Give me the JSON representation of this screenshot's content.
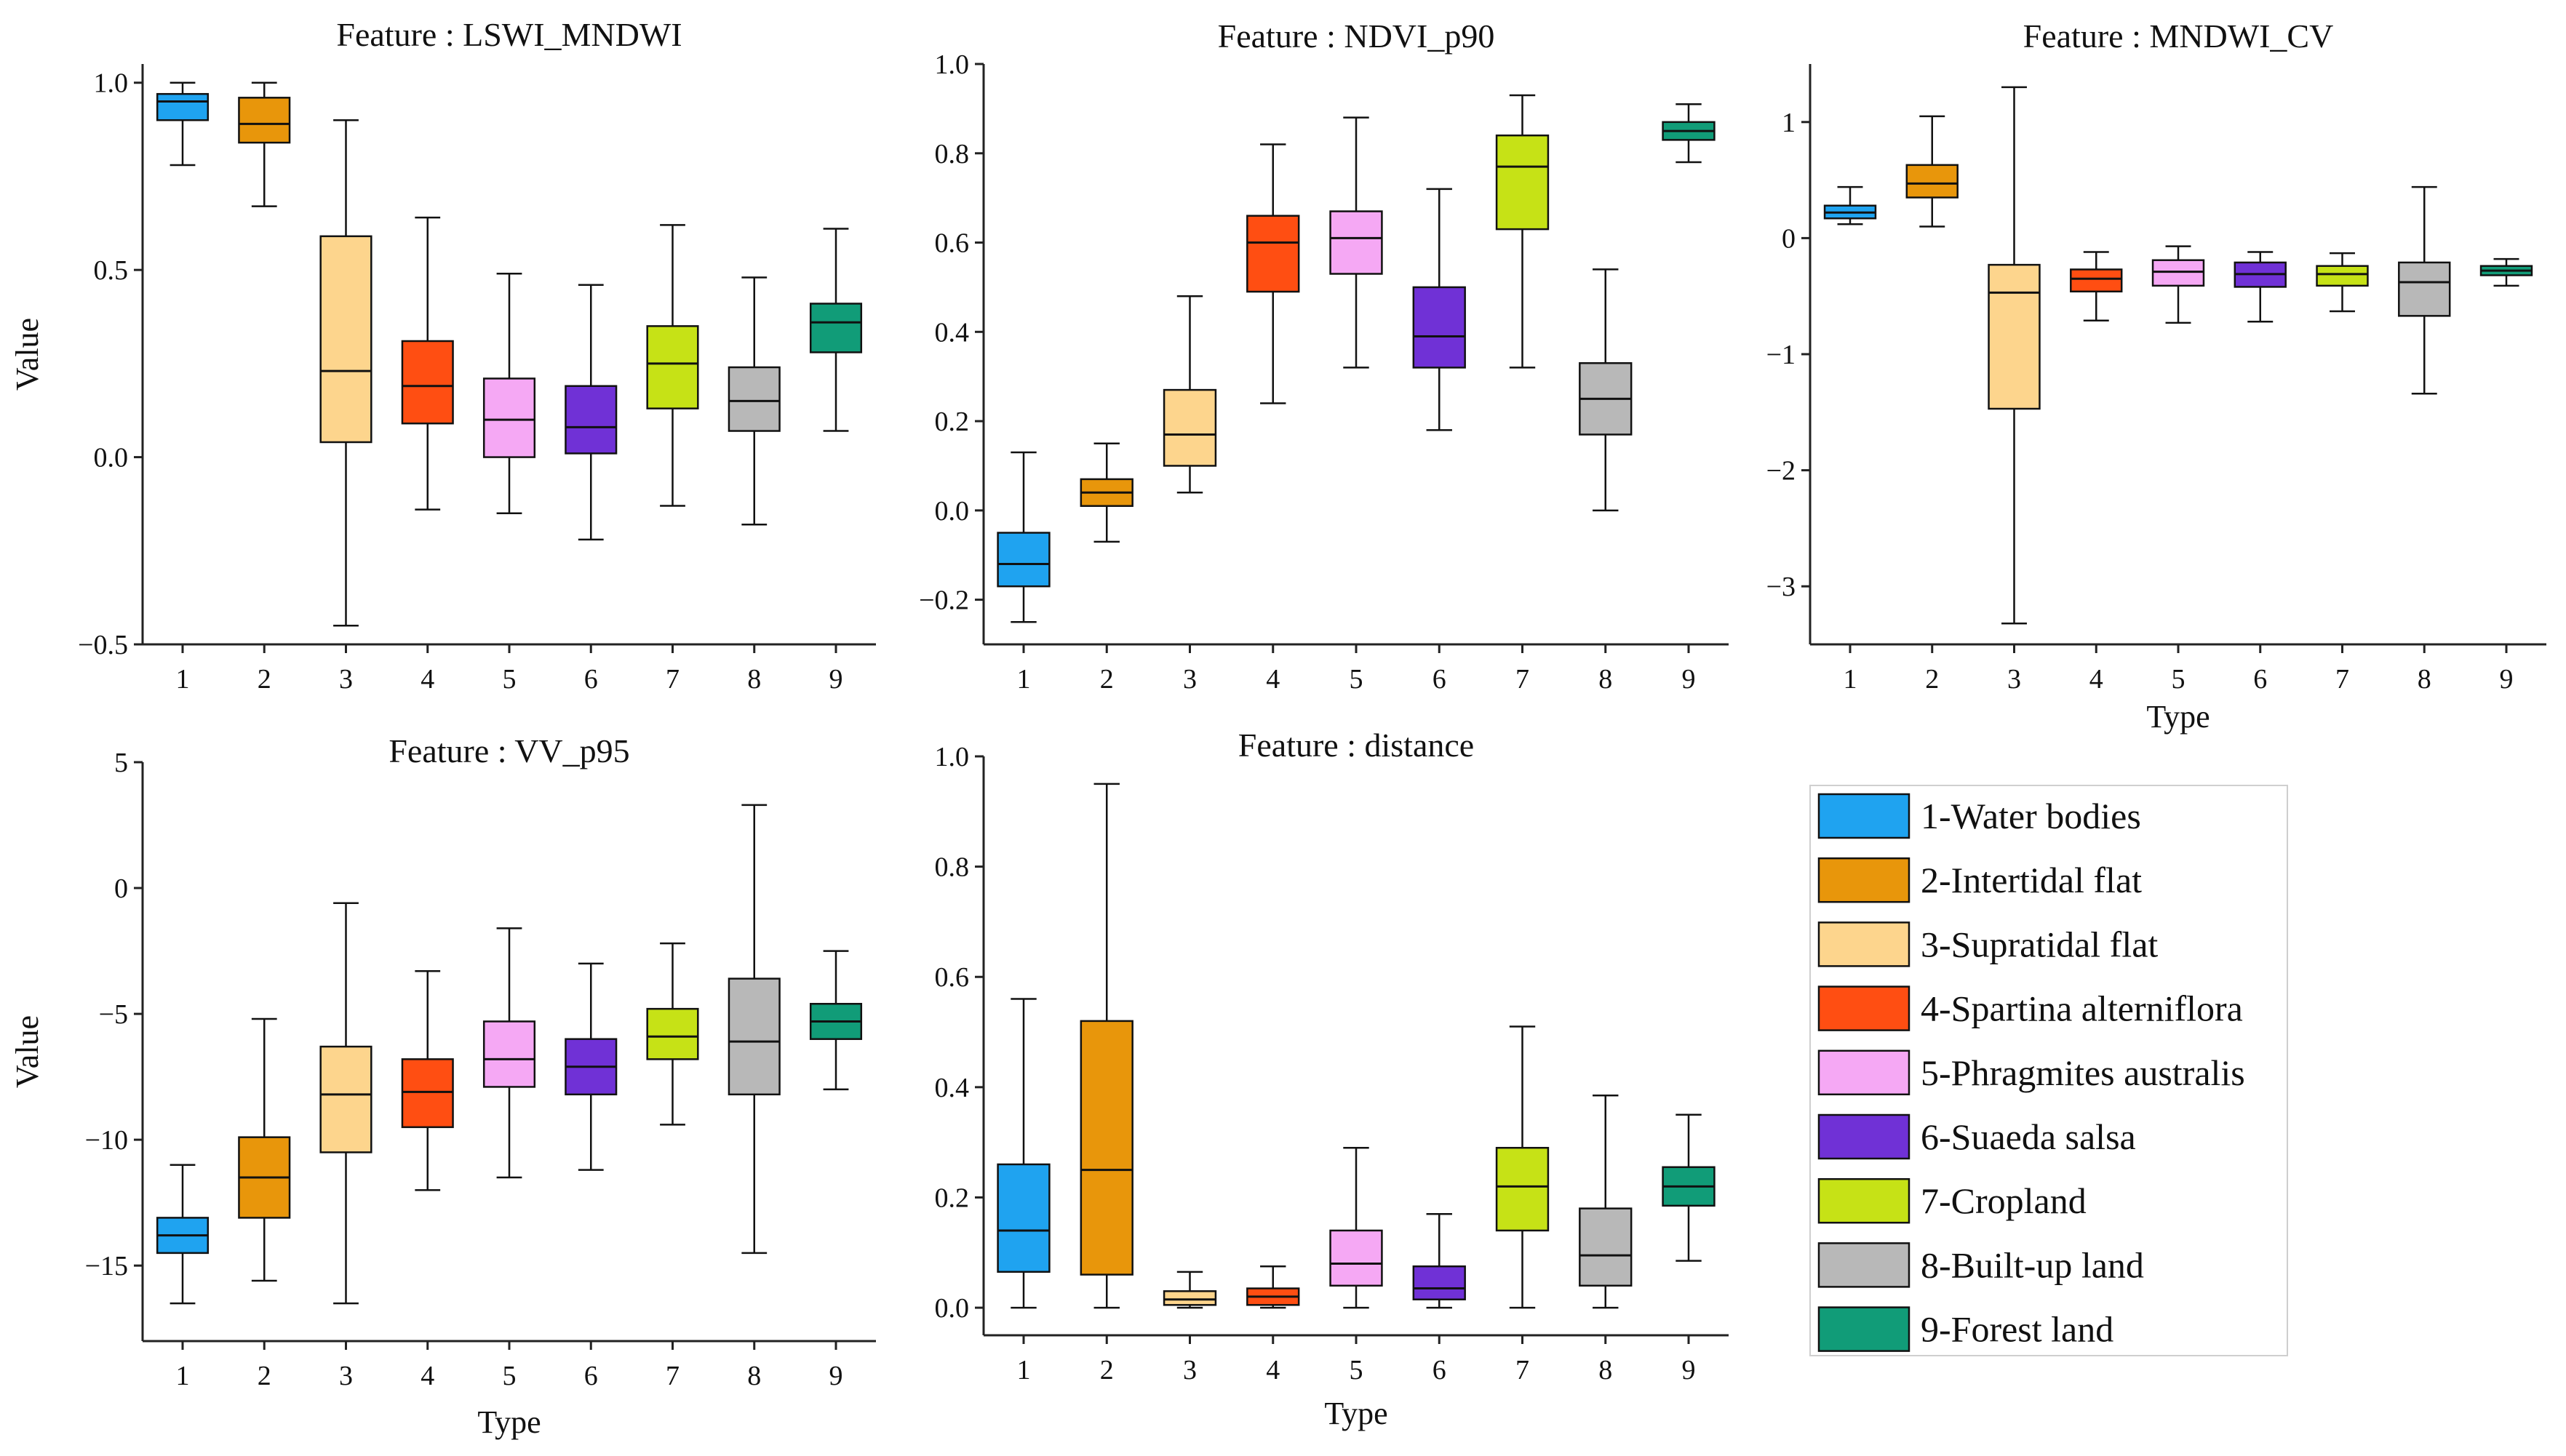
{
  "colors": [
    "#1fa3f0",
    "#e8960b",
    "#fdd58d",
    "#ff4e12",
    "#f5a8f4",
    "#7031d6",
    "#c6e216",
    "#b8b8b8",
    "#119c78"
  ],
  "legend": {
    "items": [
      "1-Water bodies",
      "2-Intertidal flat",
      "3-Supratidal flat",
      "4-Spartina alterniflora",
      "5-Phragmites australis",
      "6-Suaeda salsa",
      "7-Cropland",
      "8-Built-up land",
      "9-Forest land"
    ]
  },
  "chart_data": [
    {
      "type": "box",
      "title": "Feature : LSWI_MNDWI",
      "xlabel": "",
      "ylabel": "Value",
      "categories": [
        "1",
        "2",
        "3",
        "4",
        "5",
        "6",
        "7",
        "8",
        "9"
      ],
      "ylim": [
        -0.5,
        1.05
      ],
      "yticks": [
        -0.5,
        0.0,
        0.5,
        1.0
      ],
      "yticklabels": [
        "−0.5",
        "0.0",
        "0.5",
        "1.0"
      ],
      "boxes": [
        {
          "min": 0.78,
          "q1": 0.9,
          "median": 0.95,
          "q3": 0.97,
          "max": 1.0
        },
        {
          "min": 0.67,
          "q1": 0.84,
          "median": 0.89,
          "q3": 0.96,
          "max": 1.0
        },
        {
          "min": -0.45,
          "q1": 0.04,
          "median": 0.23,
          "q3": 0.59,
          "max": 0.9
        },
        {
          "min": -0.14,
          "q1": 0.09,
          "median": 0.19,
          "q3": 0.31,
          "max": 0.64
        },
        {
          "min": -0.15,
          "q1": 0.0,
          "median": 0.1,
          "q3": 0.21,
          "max": 0.49
        },
        {
          "min": -0.22,
          "q1": 0.01,
          "median": 0.08,
          "q3": 0.19,
          "max": 0.46
        },
        {
          "min": -0.13,
          "q1": 0.13,
          "median": 0.25,
          "q3": 0.35,
          "max": 0.62
        },
        {
          "min": -0.18,
          "q1": 0.07,
          "median": 0.15,
          "q3": 0.24,
          "max": 0.48
        },
        {
          "min": 0.07,
          "q1": 0.28,
          "median": 0.36,
          "q3": 0.41,
          "max": 0.61
        }
      ]
    },
    {
      "type": "box",
      "title": "Feature : NDVI_p90",
      "xlabel": "",
      "ylabel": "",
      "categories": [
        "1",
        "2",
        "3",
        "4",
        "5",
        "6",
        "7",
        "8",
        "9"
      ],
      "ylim": [
        -0.3,
        1.0
      ],
      "yticks": [
        -0.2,
        0.0,
        0.2,
        0.4,
        0.6,
        0.8,
        1.0
      ],
      "yticklabels": [
        "−0.2",
        "0.0",
        "0.2",
        "0.4",
        "0.6",
        "0.8",
        "1.0"
      ],
      "boxes": [
        {
          "min": -0.25,
          "q1": -0.17,
          "median": -0.12,
          "q3": -0.05,
          "max": 0.13
        },
        {
          "min": -0.07,
          "q1": 0.01,
          "median": 0.04,
          "q3": 0.07,
          "max": 0.15
        },
        {
          "min": 0.04,
          "q1": 0.1,
          "median": 0.17,
          "q3": 0.27,
          "max": 0.48
        },
        {
          "min": 0.24,
          "q1": 0.49,
          "median": 0.6,
          "q3": 0.66,
          "max": 0.82
        },
        {
          "min": 0.32,
          "q1": 0.53,
          "median": 0.61,
          "q3": 0.67,
          "max": 0.88
        },
        {
          "min": 0.18,
          "q1": 0.32,
          "median": 0.39,
          "q3": 0.5,
          "max": 0.72
        },
        {
          "min": 0.32,
          "q1": 0.63,
          "median": 0.77,
          "q3": 0.84,
          "max": 0.93
        },
        {
          "min": 0.0,
          "q1": 0.17,
          "median": 0.25,
          "q3": 0.33,
          "max": 0.54
        },
        {
          "min": 0.78,
          "q1": 0.83,
          "median": 0.85,
          "q3": 0.87,
          "max": 0.91
        }
      ]
    },
    {
      "type": "box",
      "title": "Feature : MNDWI_CV",
      "xlabel": "Type",
      "ylabel": "",
      "categories": [
        "1",
        "2",
        "3",
        "4",
        "5",
        "6",
        "7",
        "8",
        "9"
      ],
      "ylim": [
        -3.5,
        1.5
      ],
      "yticks": [
        -3,
        -2,
        -1,
        0,
        1
      ],
      "yticklabels": [
        "−3",
        "−2",
        "−1",
        "0",
        "1"
      ],
      "boxes": [
        {
          "min": 0.12,
          "q1": 0.17,
          "median": 0.22,
          "q3": 0.28,
          "max": 0.44
        },
        {
          "min": 0.1,
          "q1": 0.35,
          "median": 0.47,
          "q3": 0.63,
          "max": 1.05
        },
        {
          "min": -3.32,
          "q1": -1.47,
          "median": -0.47,
          "q3": -0.23,
          "max": 1.3
        },
        {
          "min": -0.71,
          "q1": -0.46,
          "median": -0.35,
          "q3": -0.27,
          "max": -0.12
        },
        {
          "min": -0.73,
          "q1": -0.41,
          "median": -0.29,
          "q3": -0.19,
          "max": -0.07
        },
        {
          "min": -0.72,
          "q1": -0.42,
          "median": -0.31,
          "q3": -0.21,
          "max": -0.12
        },
        {
          "min": -0.63,
          "q1": -0.41,
          "median": -0.31,
          "q3": -0.24,
          "max": -0.13
        },
        {
          "min": -1.34,
          "q1": -0.67,
          "median": -0.38,
          "q3": -0.21,
          "max": 0.44
        },
        {
          "min": -0.41,
          "q1": -0.32,
          "median": -0.28,
          "q3": -0.24,
          "max": -0.18
        }
      ]
    },
    {
      "type": "box",
      "title": "Feature : VV_p95",
      "xlabel": "Type",
      "ylabel": "Value",
      "categories": [
        "1",
        "2",
        "3",
        "4",
        "5",
        "6",
        "7",
        "8",
        "9"
      ],
      "ylim": [
        -18,
        5
      ],
      "yticks": [
        -15,
        -10,
        -5,
        0,
        5
      ],
      "yticklabels": [
        "−15",
        "−10",
        "−5",
        "0",
        "5"
      ],
      "boxes": [
        {
          "min": -16.5,
          "q1": -14.5,
          "median": -13.8,
          "q3": -13.1,
          "max": -11.0
        },
        {
          "min": -15.6,
          "q1": -13.1,
          "median": -11.5,
          "q3": -9.9,
          "max": -5.2
        },
        {
          "min": -16.5,
          "q1": -10.5,
          "median": -8.2,
          "q3": -6.3,
          "max": -0.6
        },
        {
          "min": -12.0,
          "q1": -9.5,
          "median": -8.1,
          "q3": -6.8,
          "max": -3.3
        },
        {
          "min": -11.5,
          "q1": -7.9,
          "median": -6.8,
          "q3": -5.3,
          "max": -1.6
        },
        {
          "min": -11.2,
          "q1": -8.2,
          "median": -7.1,
          "q3": -6.0,
          "max": -3.0
        },
        {
          "min": -9.4,
          "q1": -6.8,
          "median": -5.9,
          "q3": -4.8,
          "max": -2.2
        },
        {
          "min": -14.5,
          "q1": -8.2,
          "median": -6.1,
          "q3": -3.6,
          "max": 3.3
        },
        {
          "min": -8.0,
          "q1": -6.0,
          "median": -5.3,
          "q3": -4.6,
          "max": -2.5
        }
      ]
    },
    {
      "type": "box",
      "title": "Feature : distance",
      "xlabel": "Type",
      "ylabel": "",
      "categories": [
        "1",
        "2",
        "3",
        "4",
        "5",
        "6",
        "7",
        "8",
        "9"
      ],
      "ylim": [
        -0.05,
        1.0
      ],
      "yticks": [
        0.0,
        0.2,
        0.4,
        0.6,
        0.8,
        1.0
      ],
      "yticklabels": [
        "0.0",
        "0.2",
        "0.4",
        "0.6",
        "0.8",
        "1.0"
      ],
      "boxes": [
        {
          "min": 0.0,
          "q1": 0.065,
          "median": 0.14,
          "q3": 0.26,
          "max": 0.56
        },
        {
          "min": 0.0,
          "q1": 0.06,
          "median": 0.25,
          "q3": 0.52,
          "max": 0.95
        },
        {
          "min": 0.0,
          "q1": 0.005,
          "median": 0.015,
          "q3": 0.03,
          "max": 0.065
        },
        {
          "min": 0.0,
          "q1": 0.005,
          "median": 0.02,
          "q3": 0.035,
          "max": 0.075
        },
        {
          "min": 0.0,
          "q1": 0.04,
          "median": 0.08,
          "q3": 0.14,
          "max": 0.29
        },
        {
          "min": 0.0,
          "q1": 0.015,
          "median": 0.035,
          "q3": 0.075,
          "max": 0.17
        },
        {
          "min": 0.0,
          "q1": 0.14,
          "median": 0.22,
          "q3": 0.29,
          "max": 0.51
        },
        {
          "min": 0.0,
          "q1": 0.04,
          "median": 0.095,
          "q3": 0.18,
          "max": 0.385
        },
        {
          "min": 0.085,
          "q1": 0.185,
          "median": 0.22,
          "q3": 0.255,
          "max": 0.35
        }
      ]
    }
  ]
}
